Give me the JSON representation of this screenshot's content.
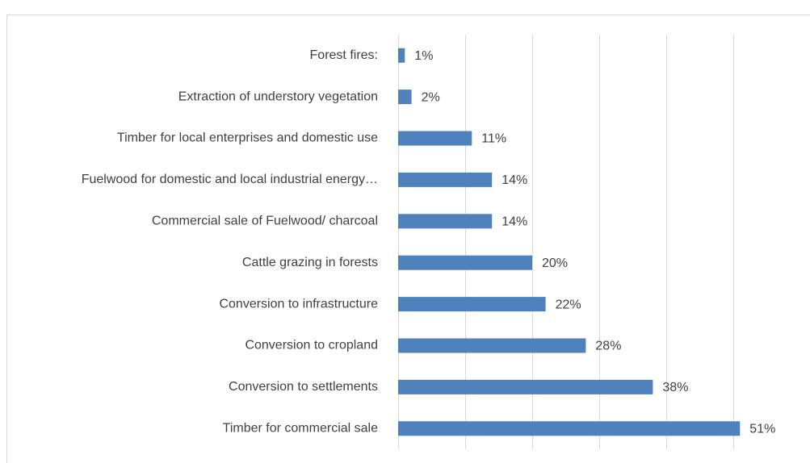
{
  "chart_data": {
    "type": "bar",
    "orientation": "horizontal",
    "categories": [
      "Forest fires:",
      "Extraction of understory vegetation",
      "Timber for local enterprises and domestic use",
      "Fuelwood for domestic and local industrial energy…",
      "Commercial sale of Fuelwood/ charcoal",
      "Cattle grazing in forests",
      "Conversion to infrastructure",
      "Conversion to cropland",
      "Conversion to settlements",
      "Timber for commercial sale"
    ],
    "values": [
      1,
      2,
      11,
      14,
      14,
      20,
      22,
      28,
      38,
      51
    ],
    "value_labels": [
      "1%",
      "2%",
      "11%",
      "14%",
      "14%",
      "20%",
      "22%",
      "28%",
      "38%",
      "51%"
    ],
    "color": "#4f81bd",
    "xlim": [
      0,
      60
    ],
    "xticks": [
      0,
      10,
      20,
      30,
      40,
      50
    ],
    "grid": true
  }
}
